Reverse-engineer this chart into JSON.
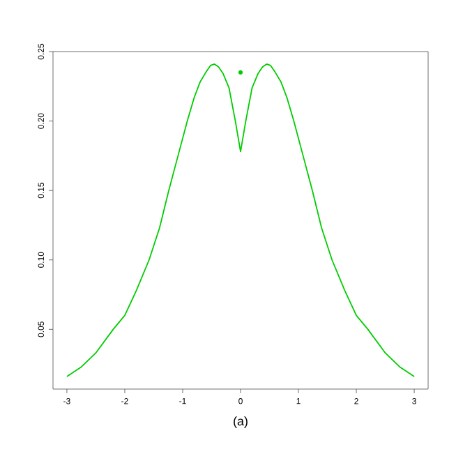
{
  "chart_data": {
    "type": "line",
    "xlabel": "(a)",
    "xlim": [
      -3.24,
      3.24
    ],
    "ylim": [
      0.007,
      0.25
    ],
    "xticks": [
      -3,
      -2,
      -1,
      0,
      1,
      2,
      3
    ],
    "yticks": [
      {
        "value": 0.05,
        "label": "0.05"
      },
      {
        "value": 0.1,
        "label": "0.10"
      },
      {
        "value": 0.15,
        "label": "0.15"
      },
      {
        "value": 0.2,
        "label": "0.20"
      },
      {
        "value": 0.25,
        "label": "0.25"
      }
    ],
    "grid": false,
    "series": [
      {
        "color": "#00cd00",
        "marker": "none",
        "x": [
          -3,
          -2.75,
          -2.5,
          -2.2,
          -2,
          -1.8,
          -1.58,
          -1.4,
          -1.24,
          -1.08,
          -0.92,
          -0.8,
          -0.7,
          -0.6,
          -0.52,
          -0.45,
          -0.38,
          -0.3,
          -0.2,
          -0.09,
          0,
          0.09,
          0.2,
          0.3,
          0.38,
          0.45,
          0.52,
          0.6,
          0.7,
          0.8,
          0.92,
          1.08,
          1.24,
          1.4,
          1.58,
          1.8,
          2,
          2.2,
          2.5,
          2.75,
          3
        ],
        "values": [
          0.016,
          0.023,
          0.033,
          0.05,
          0.06,
          0.078,
          0.1,
          0.123,
          0.15,
          0.175,
          0.2,
          0.217,
          0.228,
          0.235,
          0.24,
          0.241,
          0.239,
          0.234,
          0.224,
          0.2,
          0.178,
          0.2,
          0.224,
          0.234,
          0.239,
          0.241,
          0.24,
          0.235,
          0.228,
          0.217,
          0.2,
          0.175,
          0.15,
          0.123,
          0.1,
          0.078,
          0.06,
          0.05,
          0.033,
          0.023,
          0.016
        ]
      },
      {
        "type": "scatter",
        "color": "#00cd00",
        "marker": "circle",
        "x": [
          0
        ],
        "values": [
          0.235
        ]
      }
    ]
  }
}
